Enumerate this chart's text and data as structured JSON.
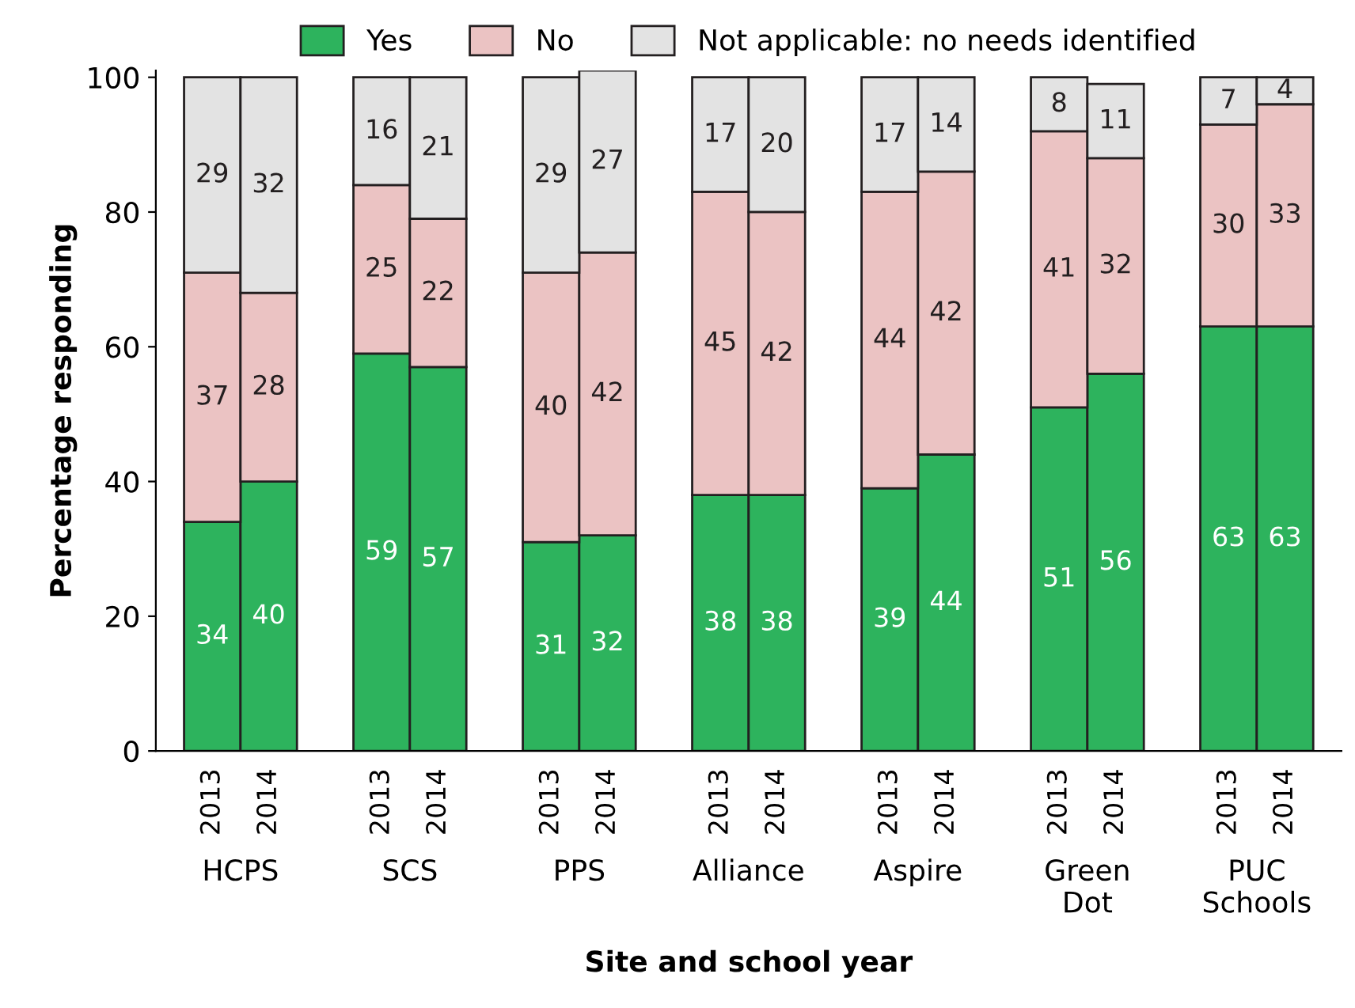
{
  "chart_data": {
    "type": "bar",
    "stacked": true,
    "xlabel": "Site and school year",
    "ylabel": "Percentage responding",
    "categories": [
      "2013",
      "2014",
      null,
      "2013",
      "2014",
      null,
      "2013",
      "2014",
      null,
      "2013",
      "2014",
      null,
      "2013",
      "2014",
      null,
      "2013",
      "2014",
      null,
      "2013",
      "2014"
    ],
    "series": [
      {
        "name": "Yes",
        "color": "#2db35d",
        "values": [
          34,
          40,
          null,
          59,
          57,
          null,
          31,
          32,
          null,
          38,
          38,
          null,
          39,
          44,
          null,
          51,
          56,
          null,
          63,
          63
        ]
      },
      {
        "name": "No",
        "color": "#ebc3c3",
        "values": [
          37,
          28,
          null,
          25,
          22,
          null,
          40,
          42,
          null,
          45,
          42,
          null,
          44,
          42,
          null,
          41,
          32,
          null,
          30,
          33
        ]
      },
      {
        "name": "Not applicable: no needs identified",
        "color": "#e3e3e3",
        "values": [
          29,
          32,
          null,
          16,
          21,
          null,
          29,
          27,
          null,
          17,
          20,
          null,
          17,
          14,
          null,
          8,
          11,
          null,
          7,
          4
        ]
      }
    ],
    "annotations": [
      "HCPS",
      "SCS",
      "PPS",
      "Alliance",
      "Aspire",
      "Green\nDot",
      "PUC\nSchools"
    ],
    "ylim": [
      0,
      101
    ],
    "yticks": [
      0,
      20,
      40,
      60,
      80,
      100
    ],
    "data_labels": true,
    "legend": "top",
    "grid": false
  }
}
